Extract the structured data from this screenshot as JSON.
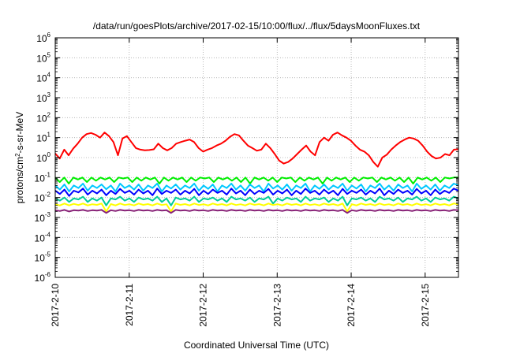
{
  "chart_data": {
    "type": "line",
    "title": "/data/run/goesPlots/archive/2017-02-15/10:00/flux/../flux/5daysMoonFluxes.txt",
    "xlabel": "Coordinated Universal Time (UTC)",
    "ylabel": {
      "prefix": "protons/cm",
      "sup": "2",
      "suffix": "-s-sr-MeV"
    },
    "yscale": "log",
    "ylim_exponents": [
      -6,
      6
    ],
    "y_tick_labels": [
      {
        "base": "10",
        "exp": "-6"
      },
      {
        "base": "10",
        "exp": "-5"
      },
      {
        "base": "10",
        "exp": "-4"
      },
      {
        "base": "10",
        "exp": "-3"
      },
      {
        "base": "10",
        "exp": "-2"
      },
      {
        "base": "10",
        "exp": "-1"
      },
      {
        "base": "10",
        "exp": "0"
      },
      {
        "base": "10",
        "exp": "1"
      },
      {
        "base": "10",
        "exp": "2"
      },
      {
        "base": "10",
        "exp": "3"
      },
      {
        "base": "10",
        "exp": "4"
      },
      {
        "base": "10",
        "exp": "5"
      },
      {
        "base": "10",
        "exp": "6"
      }
    ],
    "x_tick_labels": [
      "2017-2-10",
      "2017-2-11",
      "2017-2-12",
      "2017-2-13",
      "2017-2-14",
      "2017-2-15"
    ],
    "xlim_days": [
      0,
      5.45
    ],
    "grid": true,
    "series": [
      {
        "color": "#ff0000",
        "y": [
          1.6,
          0.9,
          2.5,
          1.3,
          2.8,
          5,
          10,
          15,
          17,
          14,
          10,
          18,
          12,
          6,
          1.3,
          9,
          12,
          6,
          3,
          2.5,
          2.3,
          2.4,
          2.6,
          5,
          3,
          2.3,
          3,
          5,
          6,
          7,
          8,
          6,
          3,
          2,
          2.5,
          3,
          4,
          5,
          7,
          11,
          15,
          13,
          7,
          4,
          3,
          2.2,
          2.5,
          5,
          3,
          1.5,
          0.7,
          0.5,
          0.6,
          0.9,
          1.5,
          2.5,
          4,
          2,
          1.3,
          6,
          10,
          7,
          14,
          18,
          13,
          10,
          7,
          4,
          2.5,
          2,
          1.3,
          0.6,
          0.35,
          1,
          1.4,
          2.5,
          4,
          6,
          8,
          10,
          9,
          7,
          4,
          2,
          1.2,
          0.9,
          1,
          1.5,
          1.3,
          2.5,
          2.6
        ]
      },
      {
        "color": "#00ee00",
        "y": [
          0.1,
          0.06,
          0.1,
          0.05,
          0.1,
          0.08,
          0.1,
          0.06,
          0.1,
          0.07,
          0.1,
          0.08,
          0.1,
          0.06,
          0.1,
          0.09,
          0.1,
          0.06,
          0.1,
          0.07,
          0.1,
          0.08,
          0.1,
          0.05,
          0.1,
          0.07,
          0.1,
          0.08,
          0.1,
          0.06,
          0.1,
          0.07,
          0.1,
          0.09,
          0.1,
          0.06,
          0.1,
          0.08,
          0.1,
          0.07,
          0.1,
          0.06,
          0.1,
          0.05,
          0.1,
          0.08,
          0.1,
          0.07,
          0.1,
          0.06,
          0.1,
          0.09,
          0.1,
          0.06,
          0.1,
          0.07,
          0.1,
          0.08,
          0.1,
          0.05,
          0.1,
          0.07,
          0.1,
          0.08,
          0.1,
          0.06,
          0.1,
          0.07,
          0.1,
          0.09,
          0.1,
          0.06,
          0.1,
          0.08,
          0.1,
          0.07,
          0.1,
          0.06,
          0.1,
          0.05,
          0.1,
          0.08,
          0.1,
          0.07,
          0.1,
          0.06,
          0.1,
          0.09,
          0.1,
          0.1
        ]
      },
      {
        "color": "#00c8ff",
        "y": [
          0.04,
          0.025,
          0.045,
          0.02,
          0.04,
          0.03,
          0.05,
          0.022,
          0.04,
          0.03,
          0.045,
          0.026,
          0.04,
          0.02,
          0.05,
          0.03,
          0.04,
          0.025,
          0.045,
          0.022,
          0.04,
          0.03,
          0.05,
          0.02,
          0.04,
          0.028,
          0.045,
          0.025,
          0.04,
          0.03,
          0.05,
          0.022,
          0.04,
          0.027,
          0.045,
          0.02,
          0.04,
          0.03,
          0.05,
          0.025,
          0.04,
          0.022,
          0.045,
          0.03,
          0.04,
          0.02,
          0.05,
          0.028,
          0.04,
          0.025,
          0.045,
          0.022,
          0.04,
          0.03,
          0.05,
          0.02,
          0.04,
          0.027,
          0.045,
          0.025,
          0.04,
          0.03,
          0.05,
          0.022,
          0.04,
          0.028,
          0.045,
          0.02,
          0.04,
          0.03,
          0.05,
          0.025,
          0.04,
          0.022,
          0.045,
          0.03,
          0.04,
          0.02,
          0.05,
          0.027,
          0.04,
          0.025,
          0.045,
          0.022,
          0.04,
          0.03,
          0.05,
          0.04
        ]
      },
      {
        "color": "#0000ff",
        "y": [
          0.022,
          0.015,
          0.025,
          0.012,
          0.022,
          0.018,
          0.028,
          0.014,
          0.022,
          0.016,
          0.025,
          0.013,
          0.022,
          0.015,
          0.027,
          0.017,
          0.022,
          0.014,
          0.025,
          0.016,
          0.022,
          0.013,
          0.028,
          0.015,
          0.022,
          0.017,
          0.025,
          0.014,
          0.022,
          0.016,
          0.027,
          0.013,
          0.022,
          0.015,
          0.025,
          0.017,
          0.022,
          0.014,
          0.028,
          0.016,
          0.022,
          0.013,
          0.025,
          0.015,
          0.022,
          0.017,
          0.027,
          0.014,
          0.022,
          0.016,
          0.025,
          0.013,
          0.022,
          0.015,
          0.028,
          0.017,
          0.022,
          0.014,
          0.025,
          0.016,
          0.022,
          0.013,
          0.027,
          0.015,
          0.022,
          0.017,
          0.025,
          0.014,
          0.022,
          0.016,
          0.028,
          0.013,
          0.022,
          0.015,
          0.025,
          0.017,
          0.022,
          0.014,
          0.027,
          0.016,
          0.022,
          0.013,
          0.025,
          0.015,
          0.022,
          0.017,
          0.028,
          0.022
        ]
      },
      {
        "color": "#00cc99",
        "y": [
          0.009,
          0.007,
          0.01,
          0.006,
          0.009,
          0.008,
          0.011,
          0.006,
          0.009,
          0.007,
          0.01,
          0.004,
          0.009,
          0.008,
          0.011,
          0.007,
          0.009,
          0.006,
          0.01,
          0.008,
          0.009,
          0.007,
          0.011,
          0.006,
          0.009,
          0.004,
          0.01,
          0.008,
          0.009,
          0.007,
          0.011,
          0.006,
          0.009,
          0.008,
          0.01,
          0.007,
          0.009,
          0.006,
          0.011,
          0.008,
          0.009,
          0.007,
          0.01,
          0.006,
          0.009,
          0.008,
          0.011,
          0.005,
          0.009,
          0.007,
          0.01,
          0.008,
          0.009,
          0.006,
          0.011,
          0.007,
          0.009,
          0.008,
          0.01,
          0.006,
          0.009,
          0.007,
          0.011,
          0.004,
          0.009,
          0.008,
          0.01,
          0.007,
          0.009,
          0.006,
          0.011,
          0.008,
          0.009,
          0.007,
          0.01,
          0.006,
          0.009,
          0.008,
          0.011,
          0.007,
          0.009,
          0.006,
          0.01,
          0.008,
          0.009,
          0.007,
          0.011,
          0.009
        ]
      },
      {
        "color": "#ffff00",
        "y": [
          0.0045,
          0.004,
          0.005,
          0.004,
          0.0048,
          0.0042,
          0.005,
          0.004,
          0.0046,
          0.0043,
          0.005,
          0.002,
          0.0047,
          0.004,
          0.005,
          0.0042,
          0.0046,
          0.004,
          0.005,
          0.0043,
          0.0047,
          0.004,
          0.005,
          0.0042,
          0.0046,
          0.002,
          0.005,
          0.0043,
          0.0047,
          0.004,
          0.005,
          0.0042,
          0.0046,
          0.004,
          0.005,
          0.0043,
          0.0047,
          0.004,
          0.005,
          0.0042,
          0.0046,
          0.004,
          0.005,
          0.0043,
          0.0047,
          0.004,
          0.005,
          0.0042,
          0.0046,
          0.004,
          0.005,
          0.0043,
          0.0047,
          0.004,
          0.005,
          0.0042,
          0.0046,
          0.004,
          0.005,
          0.0043,
          0.0047,
          0.004,
          0.005,
          0.002,
          0.0046,
          0.004,
          0.005,
          0.0043,
          0.0047,
          0.004,
          0.005,
          0.0042,
          0.0046,
          0.004,
          0.005,
          0.0043,
          0.0047,
          0.004,
          0.005,
          0.0042,
          0.0046,
          0.004,
          0.005,
          0.0043,
          0.0047,
          0.004,
          0.005,
          0.0046
        ]
      },
      {
        "color": "#882277",
        "y": [
          0.0023,
          0.0021,
          0.0024,
          0.002,
          0.0023,
          0.0022,
          0.0024,
          0.0021,
          0.0023,
          0.0022,
          0.0024,
          0.0017,
          0.0023,
          0.0021,
          0.0024,
          0.0022,
          0.0023,
          0.0021,
          0.0024,
          0.0022,
          0.0023,
          0.0021,
          0.0024,
          0.0022,
          0.0023,
          0.0017,
          0.0024,
          0.0022,
          0.0023,
          0.0021,
          0.0024,
          0.0022,
          0.0023,
          0.0021,
          0.0024,
          0.0022,
          0.0023,
          0.0021,
          0.0024,
          0.0022,
          0.0023,
          0.0021,
          0.0024,
          0.0022,
          0.0023,
          0.0021,
          0.0024,
          0.0022,
          0.0023,
          0.0021,
          0.0024,
          0.0022,
          0.0023,
          0.0021,
          0.0024,
          0.0022,
          0.0023,
          0.0021,
          0.0024,
          0.0022,
          0.0023,
          0.0021,
          0.0024,
          0.0017,
          0.0023,
          0.0021,
          0.0024,
          0.0022,
          0.0023,
          0.0021,
          0.0024,
          0.0022,
          0.0023,
          0.0021,
          0.0024,
          0.0022,
          0.0023,
          0.0021,
          0.0024,
          0.0022,
          0.0023,
          0.0021,
          0.0024,
          0.0022,
          0.0023,
          0.0021,
          0.0024,
          0.0023
        ]
      }
    ]
  }
}
